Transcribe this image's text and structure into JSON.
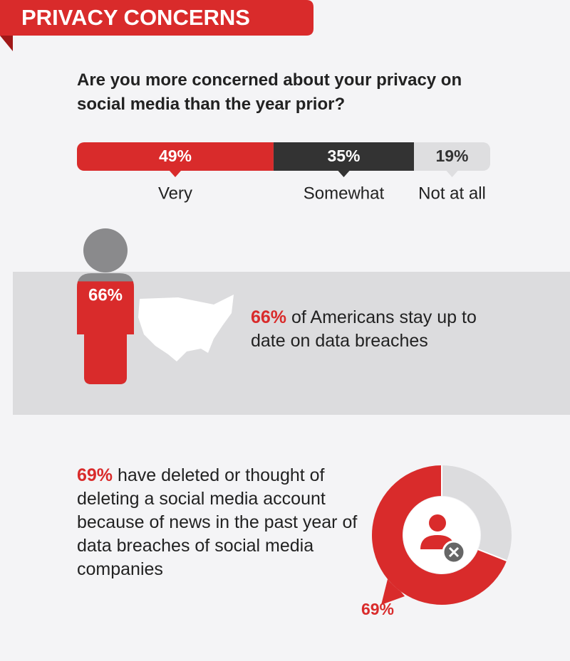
{
  "header": {
    "title": "PRIVACY CONCERNS"
  },
  "chart_data": [
    {
      "type": "bar",
      "title": "Are you more concerned about your privacy on social media than the year prior?",
      "categories": [
        "Very",
        "Somewhat",
        "Not at all"
      ],
      "values": [
        49,
        35,
        19
      ],
      "value_labels": [
        "49%",
        "35%",
        "19%"
      ],
      "colors": [
        "#d92b2b",
        "#333333",
        "#dedee0"
      ]
    },
    {
      "type": "figure",
      "values": [
        66
      ],
      "value_labels": [
        "66%"
      ],
      "color": "#d92b2b",
      "text": "of Americans stay up to date on data breaches"
    },
    {
      "type": "pie",
      "values": [
        69
      ],
      "value_labels": [
        "69%"
      ],
      "color": "#d92b2b",
      "text": "have deleted or thought of deleting a social media account because of news in the past year of data breaches of social media companies"
    }
  ]
}
